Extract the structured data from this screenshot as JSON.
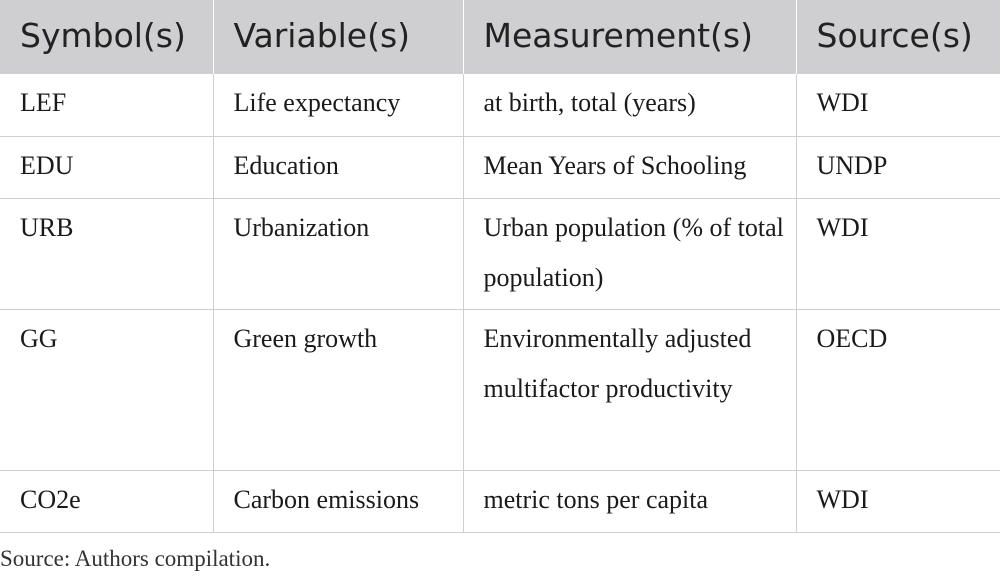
{
  "table": {
    "headers": [
      "Symbol(s)",
      "Variable(s)",
      "Measurement(s)",
      "Source(s)"
    ],
    "rows": [
      [
        "LEF",
        "Life expectancy",
        "at birth, total (years)",
        "WDI"
      ],
      [
        "EDU",
        "Education",
        "Mean Years of Schooling",
        "UNDP"
      ],
      [
        "URB",
        "Urbanization",
        "Urban population (% of total population)",
        "WDI"
      ],
      [
        "GG",
        "Green growth",
        "Environmentally adjusted multifactor productivity",
        "OECD"
      ],
      [
        "CO2e",
        "Carbon emissions",
        "metric tons per capita",
        "WDI"
      ]
    ]
  },
  "footnote": "Source: Authors compilation.",
  "colors": {
    "header_bg": "#cfcfd1",
    "grid_line": "#cfcfd1",
    "text": "#1a1a1a"
  }
}
